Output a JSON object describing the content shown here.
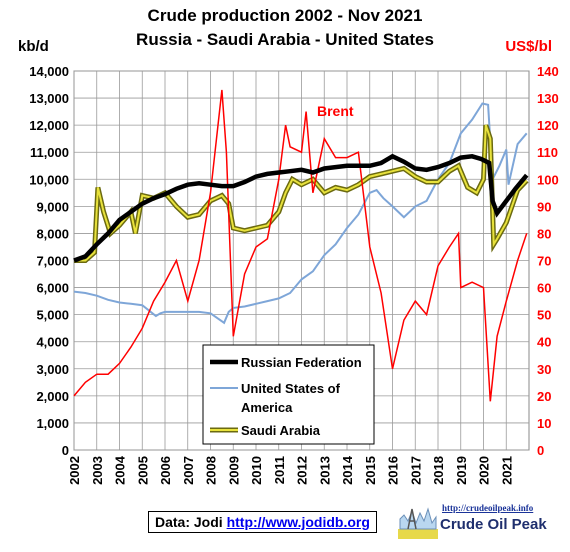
{
  "chart_data": {
    "type": "line",
    "title": "Crude production 2002 - Nov 2021",
    "subtitle": "Russia - Saudi Arabia - United States",
    "ylabel_left": "kb/d",
    "ylabel_right": "US$/bl",
    "ylim_left": [
      0,
      14000
    ],
    "ylim_right": [
      0,
      140
    ],
    "left_ticks": [
      "0",
      "1,000",
      "2,000",
      "3,000",
      "4,000",
      "5,000",
      "6,000",
      "7,000",
      "8,000",
      "9,000",
      "10,000",
      "11,000",
      "12,000",
      "13,000",
      "14,000"
    ],
    "right_ticks": [
      "0",
      "10",
      "20",
      "30",
      "40",
      "50",
      "60",
      "70",
      "80",
      "90",
      "100",
      "110",
      "120",
      "130",
      "140"
    ],
    "x_ticks": [
      "2002",
      "2003",
      "2004",
      "2005",
      "2006",
      "2007",
      "2008",
      "2009",
      "2010",
      "2011",
      "2012",
      "2013",
      "2014",
      "2015",
      "2016",
      "2017",
      "2018",
      "2019",
      "2020",
      "2021"
    ],
    "xlim": [
      2002,
      2022
    ],
    "grid": true,
    "legend": "center-bottom",
    "annotation": "Brent",
    "series": [
      {
        "name": "Russian Federation",
        "axis": "left",
        "color": "#000000",
        "x": [
          2002.0,
          2002.5,
          2003.0,
          2003.5,
          2004.0,
          2004.5,
          2005.0,
          2005.5,
          2006.0,
          2006.5,
          2007.0,
          2007.5,
          2008.0,
          2008.5,
          2009.0,
          2009.5,
          2010.0,
          2010.5,
          2011.0,
          2011.5,
          2012.0,
          2012.5,
          2013.0,
          2013.5,
          2014.0,
          2014.5,
          2015.0,
          2015.5,
          2016.0,
          2016.5,
          2017.0,
          2017.5,
          2018.0,
          2018.5,
          2019.0,
          2019.5,
          2019.9,
          2020.25,
          2020.4,
          2020.6,
          2021.0,
          2021.4,
          2021.9
        ],
        "y": [
          7000,
          7150,
          7600,
          8000,
          8500,
          8800,
          9100,
          9300,
          9450,
          9650,
          9800,
          9850,
          9800,
          9750,
          9750,
          9900,
          10100,
          10200,
          10250,
          10300,
          10350,
          10250,
          10400,
          10450,
          10500,
          10500,
          10500,
          10600,
          10850,
          10650,
          10400,
          10350,
          10450,
          10600,
          10800,
          10850,
          10750,
          10600,
          9200,
          8750,
          9200,
          9650,
          10150
        ]
      },
      {
        "name": "United States of America",
        "axis": "left",
        "color": "#7ea6d8",
        "x": [
          2002.0,
          2002.5,
          2003.0,
          2003.5,
          2004.0,
          2004.5,
          2005.0,
          2005.6,
          2005.8,
          2006.0,
          2006.5,
          2007.0,
          2007.5,
          2008.0,
          2008.6,
          2008.8,
          2009.0,
          2009.5,
          2010.0,
          2010.5,
          2011.0,
          2011.5,
          2012.0,
          2012.5,
          2013.0,
          2013.5,
          2014.0,
          2014.5,
          2015.0,
          2015.3,
          2015.6,
          2016.0,
          2016.5,
          2017.0,
          2017.5,
          2018.0,
          2018.5,
          2019.0,
          2019.5,
          2019.95,
          2020.2,
          2020.4,
          2020.7,
          2021.0,
          2021.1,
          2021.5,
          2021.9
        ],
        "y": [
          5850,
          5800,
          5700,
          5550,
          5450,
          5400,
          5350,
          4950,
          5050,
          5100,
          5100,
          5100,
          5100,
          5050,
          4700,
          5100,
          5250,
          5300,
          5400,
          5500,
          5600,
          5800,
          6300,
          6600,
          7200,
          7600,
          8200,
          8700,
          9500,
          9600,
          9300,
          9000,
          8600,
          9000,
          9200,
          10000,
          10600,
          11700,
          12200,
          12800,
          12750,
          10000,
          10500,
          11100,
          9800,
          11300,
          11700
        ]
      },
      {
        "name": "Saudi Arabia",
        "axis": "left",
        "color": "#e8e23c",
        "x": [
          2002.0,
          2002.5,
          2002.9,
          2003.05,
          2003.3,
          2003.6,
          2004.0,
          2004.5,
          2004.7,
          2005.0,
          2005.5,
          2006.0,
          2006.5,
          2007.0,
          2007.5,
          2008.0,
          2008.5,
          2008.8,
          2009.0,
          2009.5,
          2010.0,
          2010.5,
          2011.0,
          2011.3,
          2011.6,
          2012.0,
          2012.5,
          2013.0,
          2013.5,
          2014.0,
          2014.5,
          2015.0,
          2015.5,
          2016.0,
          2016.5,
          2017.0,
          2017.5,
          2018.0,
          2018.5,
          2018.9,
          2019.3,
          2019.7,
          2020.0,
          2020.1,
          2020.3,
          2020.45,
          2020.6,
          2021.0,
          2021.5,
          2021.9
        ],
        "y": [
          7000,
          7000,
          7300,
          9700,
          8800,
          8000,
          8300,
          8800,
          8000,
          9400,
          9300,
          9500,
          9000,
          8600,
          8700,
          9200,
          9400,
          9100,
          8200,
          8100,
          8200,
          8300,
          8800,
          9500,
          10000,
          9800,
          10000,
          9500,
          9700,
          9600,
          9800,
          10100,
          10200,
          10300,
          10400,
          10100,
          9900,
          9900,
          10300,
          10500,
          9700,
          9500,
          10000,
          12000,
          11500,
          7600,
          7800,
          8400,
          9600,
          9950
        ]
      },
      {
        "name": "Brent",
        "axis": "right",
        "color": "#ff0000",
        "x": [
          2002.0,
          2002.5,
          2003.0,
          2003.5,
          2004.0,
          2004.5,
          2005.0,
          2005.5,
          2006.0,
          2006.5,
          2007.0,
          2007.5,
          2008.0,
          2008.5,
          2008.7,
          2009.0,
          2009.5,
          2010.0,
          2010.5,
          2011.0,
          2011.3,
          2011.5,
          2012.0,
          2012.2,
          2012.5,
          2013.0,
          2013.5,
          2014.0,
          2014.5,
          2015.0,
          2015.5,
          2016.0,
          2016.5,
          2017.0,
          2017.5,
          2018.0,
          2018.5,
          2018.9,
          2019.0,
          2019.5,
          2020.0,
          2020.3,
          2020.6,
          2021.0,
          2021.5,
          2021.9
        ],
        "y": [
          20,
          25,
          28,
          28,
          32,
          38,
          45,
          55,
          62,
          70,
          55,
          70,
          95,
          133,
          110,
          42,
          65,
          75,
          78,
          100,
          120,
          112,
          110,
          125,
          95,
          115,
          108,
          108,
          110,
          75,
          58,
          30,
          48,
          55,
          50,
          68,
          75,
          80,
          60,
          62,
          60,
          18,
          42,
          55,
          70,
          80
        ]
      }
    ]
  },
  "credit": {
    "prefix": "Data: Jodi ",
    "link": "http://www.jodidb.org"
  },
  "logo": {
    "url": "http://crudeoilpeak.info",
    "name": "Crude Oil Peak"
  }
}
